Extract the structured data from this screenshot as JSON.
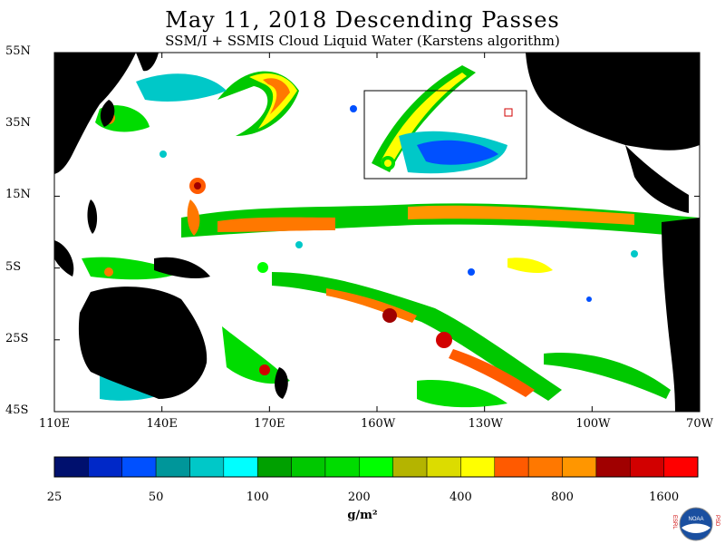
{
  "header": {
    "title": "May 11, 2018  Descending Passes",
    "subtitle": "SSM/I + SSMIS Cloud Liquid Water (Karstens algorithm)"
  },
  "map": {
    "lat_labels": [
      "55N",
      "35N",
      "15N",
      "5S",
      "25S",
      "45S"
    ],
    "lon_labels": [
      "110E",
      "140E",
      "170E",
      "160W",
      "130W",
      "100W",
      "70W"
    ],
    "lat_values": [
      55,
      35,
      15,
      -5,
      -25,
      -45
    ],
    "lon_values": [
      110,
      140,
      170,
      200,
      230,
      260,
      290
    ]
  },
  "colorbar": {
    "labels": [
      "25",
      "50",
      "100",
      "200",
      "400",
      "800",
      "1600"
    ],
    "colors": [
      "#00106e",
      "#0028c8",
      "#0050ff",
      "#00969a",
      "#00c8c8",
      "#00ffff",
      "#00a000",
      "#00c800",
      "#00dc00",
      "#00ff00",
      "#b4b400",
      "#dcdc00",
      "#ffff00",
      "#ff5a00",
      "#ff7800",
      "#ff9600",
      "#a00000",
      "#d20000",
      "#ff0000"
    ],
    "units": "g/m²"
  },
  "logo": {
    "left_letters": "ESRL",
    "right_letters": "PSD",
    "center_text": "NOAA"
  }
}
